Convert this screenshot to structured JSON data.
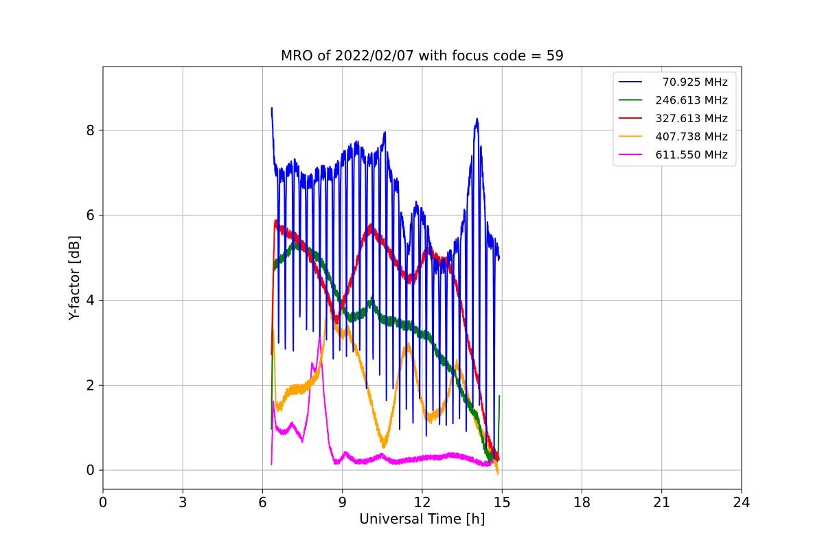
{
  "chart_data": {
    "type": "line",
    "title": "MRO of 2022/02/07 with focus code = 59",
    "xlabel": "Universal Time [h]",
    "ylabel": "Y-factor [dB]",
    "xlim": [
      0,
      24
    ],
    "ylim": [
      -0.45,
      9.5
    ],
    "xticks": [
      0,
      3,
      6,
      9,
      12,
      15,
      18,
      21,
      24
    ],
    "yticks": [
      0,
      2,
      4,
      6,
      8
    ],
    "grid": true,
    "legend_position": "top-right",
    "series": [
      {
        "name": "70.925 MHz",
        "color": "#0000ff",
        "baseline": [
          [
            6.33,
            8.6
          ],
          [
            6.45,
            7.1
          ],
          [
            6.6,
            6.9
          ],
          [
            6.9,
            7.0
          ],
          [
            7.2,
            7.2
          ],
          [
            7.5,
            6.8
          ],
          [
            7.8,
            6.8
          ],
          [
            8.1,
            7.0
          ],
          [
            8.4,
            7.0
          ],
          [
            8.7,
            7.0
          ],
          [
            9.0,
            7.3
          ],
          [
            9.3,
            7.5
          ],
          [
            9.6,
            7.6
          ],
          [
            9.9,
            7.3
          ],
          [
            10.2,
            7.3
          ],
          [
            10.5,
            7.6
          ],
          [
            10.6,
            7.9
          ],
          [
            10.75,
            7.1
          ],
          [
            10.9,
            6.7
          ],
          [
            11.1,
            6.7
          ],
          [
            11.3,
            5.6
          ],
          [
            11.5,
            5.2
          ],
          [
            11.6,
            6.0
          ],
          [
            11.8,
            6.2
          ],
          [
            12.0,
            6.0
          ],
          [
            12.2,
            5.7
          ],
          [
            12.3,
            5.2
          ],
          [
            12.5,
            4.8
          ],
          [
            12.8,
            4.8
          ],
          [
            13.1,
            5.1
          ],
          [
            13.4,
            5.4
          ],
          [
            13.7,
            6.4
          ],
          [
            13.9,
            7.6
          ],
          [
            14.05,
            8.3
          ],
          [
            14.2,
            7.6
          ],
          [
            14.35,
            6.2
          ],
          [
            14.5,
            5.4
          ],
          [
            14.75,
            5.3
          ],
          [
            14.9,
            5.0
          ]
        ],
        "dip_times": [
          6.6,
          6.85,
          7.15,
          7.4,
          7.65,
          7.9,
          8.15,
          8.4,
          8.65,
          8.9,
          9.15,
          9.4,
          9.65,
          9.9,
          10.15,
          10.4,
          10.65,
          10.9,
          11.15,
          11.4,
          11.65,
          11.9,
          12.15,
          12.4,
          12.65,
          12.9,
          13.15,
          13.4,
          13.65,
          13.9,
          14.15,
          14.4,
          14.7
        ],
        "dip_values": [
          3.0,
          2.5,
          2.2,
          3.2,
          3.4,
          3.1,
          2.8,
          2.9,
          2.3,
          2.5,
          2.7,
          2.3,
          2.2,
          2.1,
          2.0,
          1.9,
          1.7,
          1.6,
          0.5,
          1.4,
          0.5,
          1.3,
          0.9,
          1.2,
          0.8,
          1.0,
          0.9,
          0.9,
          0.8,
          0.7,
          0.8,
          0.5,
          0.4
        ]
      },
      {
        "name": "246.613 MHz",
        "color": "#008000",
        "baseline": [
          [
            6.33,
            0.9
          ],
          [
            6.4,
            4.8
          ],
          [
            6.6,
            4.9
          ],
          [
            6.9,
            5.1
          ],
          [
            7.2,
            5.3
          ],
          [
            7.5,
            5.3
          ],
          [
            7.8,
            5.1
          ],
          [
            8.1,
            5.0
          ],
          [
            8.3,
            4.8
          ],
          [
            8.6,
            4.4
          ],
          [
            8.9,
            4.0
          ],
          [
            9.2,
            3.6
          ],
          [
            9.5,
            3.6
          ],
          [
            9.8,
            3.7
          ],
          [
            10.1,
            4.0
          ],
          [
            10.4,
            3.6
          ],
          [
            10.7,
            3.5
          ],
          [
            11.0,
            3.5
          ],
          [
            11.3,
            3.4
          ],
          [
            11.6,
            3.4
          ],
          [
            11.9,
            3.2
          ],
          [
            12.2,
            3.2
          ],
          [
            12.4,
            3.0
          ],
          [
            12.6,
            2.7
          ],
          [
            12.9,
            2.5
          ],
          [
            13.2,
            2.3
          ],
          [
            13.5,
            1.8
          ],
          [
            13.8,
            1.5
          ],
          [
            14.1,
            1.2
          ],
          [
            14.3,
            0.6
          ],
          [
            14.5,
            0.3
          ],
          [
            14.7,
            0.4
          ],
          [
            14.85,
            0.3
          ],
          [
            14.9,
            1.9
          ]
        ]
      },
      {
        "name": "327.613 MHz",
        "color": "#ff0000",
        "baseline": [
          [
            6.33,
            2.7
          ],
          [
            6.45,
            5.9
          ],
          [
            6.6,
            5.7
          ],
          [
            6.9,
            5.6
          ],
          [
            7.2,
            5.5
          ],
          [
            7.5,
            5.3
          ],
          [
            7.8,
            5.0
          ],
          [
            8.1,
            4.6
          ],
          [
            8.4,
            4.2
          ],
          [
            8.6,
            3.8
          ],
          [
            8.8,
            3.5
          ],
          [
            9.0,
            3.9
          ],
          [
            9.3,
            4.4
          ],
          [
            9.5,
            4.8
          ],
          [
            9.7,
            5.3
          ],
          [
            9.9,
            5.6
          ],
          [
            10.1,
            5.7
          ],
          [
            10.3,
            5.5
          ],
          [
            10.5,
            5.4
          ],
          [
            10.7,
            5.2
          ],
          [
            10.9,
            5.0
          ],
          [
            11.1,
            4.8
          ],
          [
            11.3,
            4.6
          ],
          [
            11.5,
            4.5
          ],
          [
            11.7,
            4.5
          ],
          [
            11.9,
            4.8
          ],
          [
            12.1,
            5.1
          ],
          [
            12.3,
            5.2
          ],
          [
            12.5,
            5.0
          ],
          [
            12.7,
            4.9
          ],
          [
            12.9,
            4.9
          ],
          [
            13.1,
            4.7
          ],
          [
            13.3,
            4.3
          ],
          [
            13.5,
            3.8
          ],
          [
            13.7,
            3.1
          ],
          [
            13.9,
            2.6
          ],
          [
            14.1,
            2.1
          ],
          [
            14.3,
            1.3
          ],
          [
            14.5,
            0.7
          ],
          [
            14.7,
            0.4
          ],
          [
            14.85,
            0.3
          ]
        ]
      },
      {
        "name": "407.738 MHz",
        "color": "#ffa500",
        "baseline": [
          [
            6.33,
            1.6
          ],
          [
            6.4,
            3.4
          ],
          [
            6.5,
            1.5
          ],
          [
            6.7,
            1.5
          ],
          [
            6.9,
            1.8
          ],
          [
            7.1,
            1.9
          ],
          [
            7.3,
            1.9
          ],
          [
            7.5,
            1.9
          ],
          [
            7.7,
            2.0
          ],
          [
            7.9,
            2.1
          ],
          [
            8.1,
            2.3
          ],
          [
            8.3,
            3.0
          ],
          [
            8.45,
            4.2
          ],
          [
            8.6,
            3.6
          ],
          [
            8.8,
            3.3
          ],
          [
            9.0,
            3.2
          ],
          [
            9.2,
            3.3
          ],
          [
            9.4,
            3.0
          ],
          [
            9.6,
            2.7
          ],
          [
            9.8,
            2.3
          ],
          [
            10.0,
            1.8
          ],
          [
            10.2,
            1.3
          ],
          [
            10.4,
            0.8
          ],
          [
            10.55,
            0.6
          ],
          [
            10.7,
            0.8
          ],
          [
            10.9,
            1.4
          ],
          [
            11.1,
            2.2
          ],
          [
            11.3,
            2.8
          ],
          [
            11.5,
            2.9
          ],
          [
            11.7,
            2.5
          ],
          [
            11.9,
            1.8
          ],
          [
            12.1,
            1.3
          ],
          [
            12.3,
            1.2
          ],
          [
            12.5,
            1.3
          ],
          [
            12.7,
            1.4
          ],
          [
            12.9,
            1.6
          ],
          [
            13.1,
            2.1
          ],
          [
            13.3,
            2.5
          ],
          [
            13.5,
            2.2
          ],
          [
            13.7,
            1.8
          ],
          [
            13.9,
            1.4
          ],
          [
            14.1,
            1.0
          ],
          [
            14.3,
            0.8
          ],
          [
            14.5,
            0.5
          ],
          [
            14.7,
            0.3
          ],
          [
            14.85,
            0.0
          ]
        ]
      },
      {
        "name": "611.550 MHz",
        "color": "#ff00ff",
        "baseline": [
          [
            6.33,
            0.1
          ],
          [
            6.4,
            1.6
          ],
          [
            6.5,
            1.0
          ],
          [
            6.7,
            0.9
          ],
          [
            6.9,
            0.9
          ],
          [
            7.1,
            1.1
          ],
          [
            7.3,
            0.9
          ],
          [
            7.5,
            0.7
          ],
          [
            7.7,
            1.3
          ],
          [
            7.85,
            2.5
          ],
          [
            8.0,
            2.3
          ],
          [
            8.15,
            3.2
          ],
          [
            8.3,
            1.8
          ],
          [
            8.5,
            0.6
          ],
          [
            8.7,
            0.2
          ],
          [
            8.9,
            0.2
          ],
          [
            9.1,
            0.4
          ],
          [
            9.3,
            0.3
          ],
          [
            9.5,
            0.2
          ],
          [
            9.7,
            0.2
          ],
          [
            9.9,
            0.2
          ],
          [
            10.1,
            0.25
          ],
          [
            10.3,
            0.3
          ],
          [
            10.5,
            0.35
          ],
          [
            10.7,
            0.25
          ],
          [
            10.9,
            0.2
          ],
          [
            11.2,
            0.2
          ],
          [
            11.5,
            0.25
          ],
          [
            11.8,
            0.25
          ],
          [
            12.1,
            0.3
          ],
          [
            12.4,
            0.3
          ],
          [
            12.7,
            0.3
          ],
          [
            13.0,
            0.35
          ],
          [
            13.3,
            0.35
          ],
          [
            13.6,
            0.3
          ],
          [
            13.9,
            0.25
          ],
          [
            14.2,
            0.15
          ],
          [
            14.5,
            0.15
          ],
          [
            14.7,
            0.25
          ],
          [
            14.9,
            0.3
          ]
        ]
      }
    ]
  }
}
